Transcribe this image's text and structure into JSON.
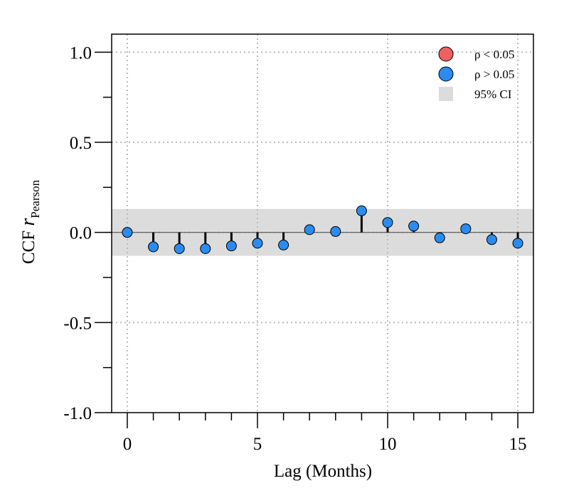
{
  "chart_data": {
    "type": "scatter",
    "xlabel": "Lag (Months)",
    "ylabel_main": "CCF ",
    "ylabel_italic": "r",
    "ylabel_sub": "Pearson",
    "xlim": [
      -0.6,
      15.6
    ],
    "ylim": [
      -1.0,
      1.1
    ],
    "x_ticks": [
      0,
      5,
      10,
      15
    ],
    "x_minor_ticks": [
      1,
      2,
      3,
      4,
      6,
      7,
      8,
      9,
      11,
      12,
      13,
      14
    ],
    "y_ticks": [
      1.0,
      0.5,
      0.0,
      -0.5,
      -1.0
    ],
    "y_tick_labels": [
      "1.0",
      "0.5",
      "0.0",
      "-0.5",
      "-1.0"
    ],
    "y_minor_ticks": [
      0.75,
      0.25,
      -0.25,
      -0.75
    ],
    "grid": true,
    "ci_band": [
      -0.13,
      0.13
    ],
    "lags": [
      0,
      1,
      2,
      3,
      4,
      5,
      6,
      7,
      8,
      9,
      10,
      11,
      12,
      13,
      14,
      15
    ],
    "values": [
      0.0,
      -0.08,
      -0.09,
      -0.09,
      -0.075,
      -0.06,
      -0.07,
      0.015,
      0.005,
      0.12,
      0.055,
      0.035,
      -0.03,
      0.02,
      -0.04,
      -0.06
    ],
    "significance": [
      "ns",
      "ns",
      "ns",
      "ns",
      "ns",
      "ns",
      "ns",
      "ns",
      "ns",
      "ns",
      "ns",
      "ns",
      "ns",
      "ns",
      "ns",
      "ns"
    ],
    "colors": {
      "significant": "#F06060",
      "not_significant": "#2A8CF0",
      "ci": "#DCDCDC",
      "grid": "#BBBBBB"
    },
    "legend": {
      "position": "top-right",
      "items": [
        {
          "label": "ρ < 0.05",
          "kind": "significant"
        },
        {
          "label": "ρ > 0.05",
          "kind": "not_significant"
        },
        {
          "label": "95% CI",
          "kind": "ci"
        }
      ]
    }
  }
}
